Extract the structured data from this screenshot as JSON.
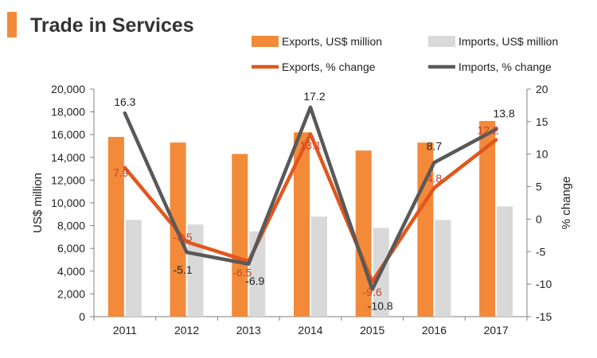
{
  "chart_data": {
    "type": "bar+line",
    "title": "Trade in Services",
    "categories": [
      "2011",
      "2012",
      "2013",
      "2014",
      "2015",
      "2016",
      "2017"
    ],
    "left_axis": {
      "label": "US$ million",
      "min": 0,
      "max": 20000,
      "step": 2000,
      "ticks": [
        "0",
        "2,000",
        "4,000",
        "6,000",
        "8,000",
        "10,000",
        "12,000",
        "14,000",
        "16,000",
        "18,000",
        "20,000"
      ]
    },
    "right_axis": {
      "label": "% change",
      "min": -15,
      "max": 20,
      "step": 5,
      "ticks": [
        "-15",
        "-10",
        "-5",
        "0",
        "5",
        "10",
        "15",
        "20"
      ]
    },
    "series": [
      {
        "name": "Exports, US$ million",
        "kind": "bar",
        "axis": "left",
        "color": "#f28a3a",
        "values": [
          15800,
          15300,
          14300,
          16200,
          14600,
          15300,
          17200
        ]
      },
      {
        "name": "Imports, US$ million",
        "kind": "bar",
        "axis": "left",
        "color": "#d9d9d9",
        "values": [
          8500,
          8100,
          7500,
          8800,
          7800,
          8500,
          9700
        ]
      },
      {
        "name": "Exports, % change",
        "kind": "line",
        "axis": "right",
        "color": "#e2561d",
        "label_color": "#c8432c",
        "values": [
          7.9,
          -3.5,
          -6.5,
          13.1,
          -9.6,
          4.8,
          12.2
        ],
        "labels": [
          "7.9",
          "-3.5",
          "-6.5",
          "13.1",
          "-9.6",
          "4.8",
          "12.2"
        ]
      },
      {
        "name": "Imports, % change",
        "kind": "line",
        "axis": "right",
        "color": "#595959",
        "label_color": "#222222",
        "values": [
          16.3,
          -5.1,
          -6.9,
          17.2,
          -10.8,
          8.7,
          13.8
        ],
        "labels": [
          "16.3",
          "-5.1",
          "-6.9",
          "17.2",
          "-10.8",
          "8.7",
          "13.8"
        ]
      }
    ],
    "legend": "top-right",
    "grid": false
  },
  "colors": {
    "accent": "#f28a3a",
    "axis": "#7f7f7f",
    "text": "#222222"
  }
}
